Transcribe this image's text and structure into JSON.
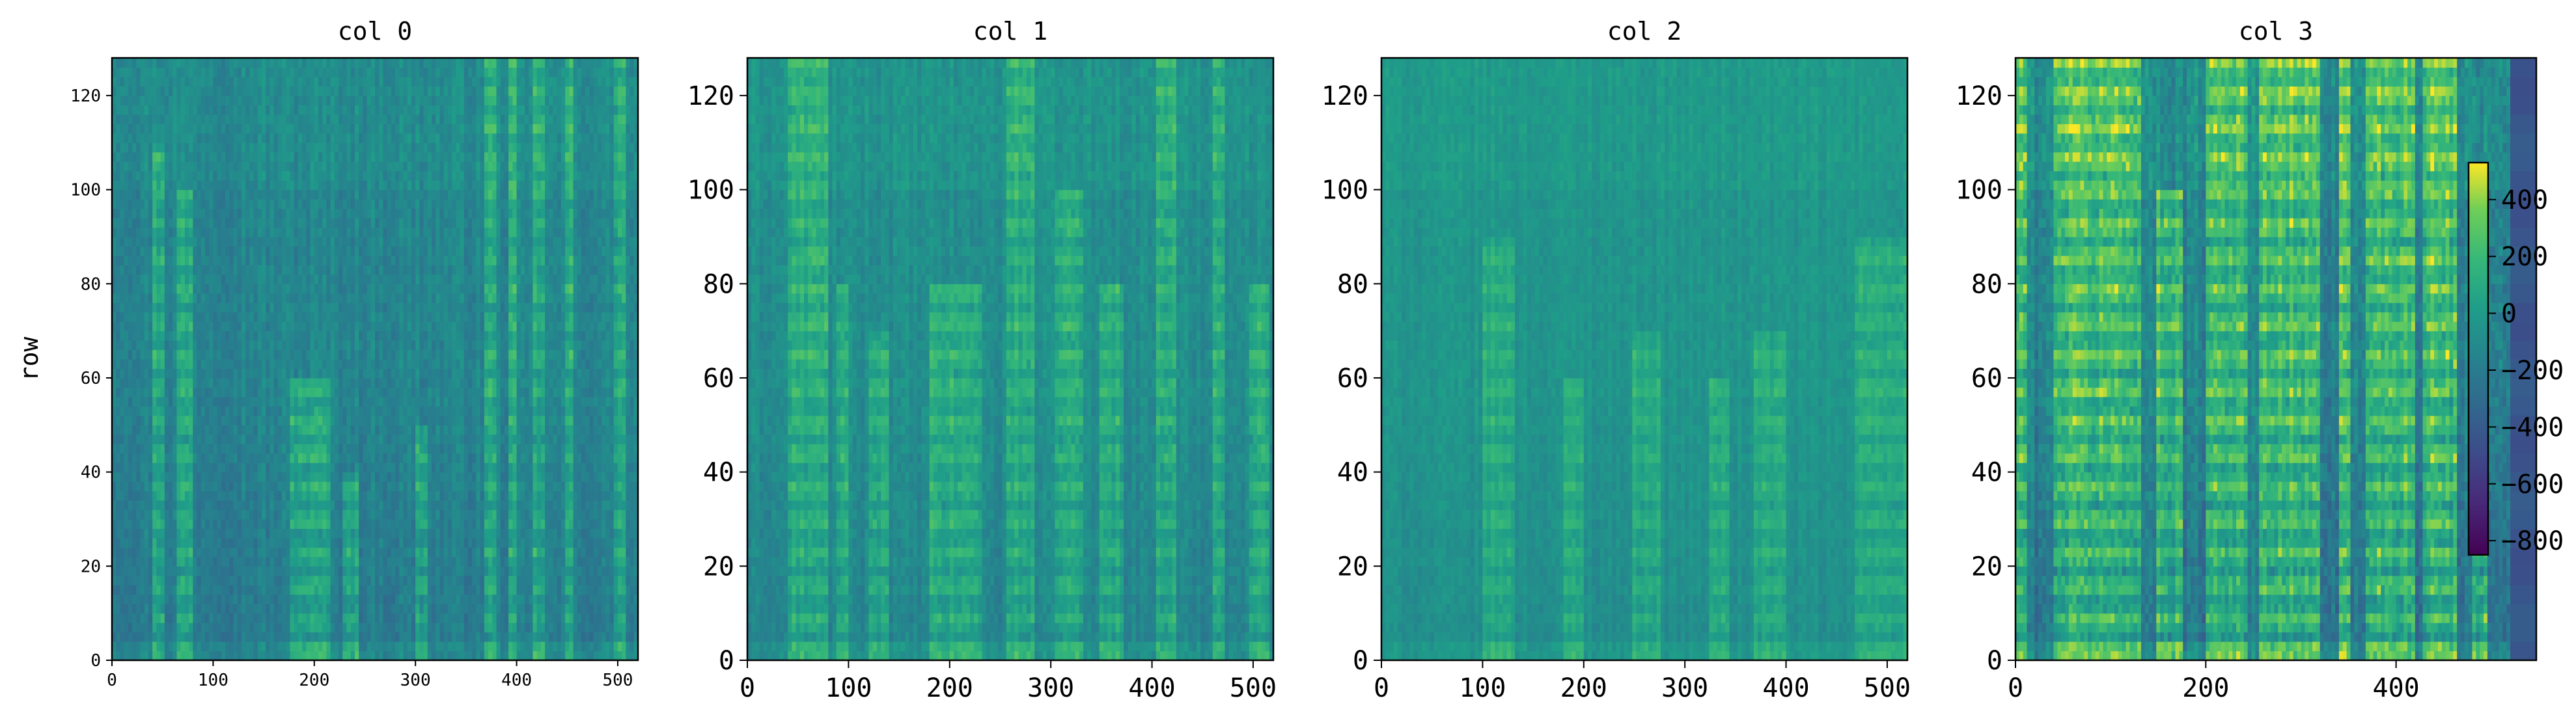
{
  "chart_data": [
    {
      "type": "heatmap",
      "title": "col 0",
      "ylabel": "row",
      "xlim": [
        0,
        520
      ],
      "ylim": [
        0,
        128
      ],
      "x_ticks": [
        0,
        100,
        200,
        300,
        400,
        500
      ],
      "y_ticks": [
        0,
        20,
        40,
        60,
        80,
        100,
        120
      ],
      "colormap": "viridis",
      "vlim": [
        -850,
        530
      ],
      "value_range_est": [
        -600,
        300
      ],
      "bright_bands_x": [
        [
          40,
          50,
          110
        ],
        [
          65,
          80,
          100
        ],
        [
          175,
          215,
          60
        ],
        [
          230,
          245,
          40
        ],
        [
          300,
          312,
          50
        ],
        [
          368,
          380,
          128
        ],
        [
          393,
          400,
          128
        ],
        [
          418,
          426,
          128
        ],
        [
          448,
          456,
          128
        ],
        [
          497,
          506,
          128
        ]
      ]
    },
    {
      "type": "heatmap",
      "title": "col 1",
      "xlim": [
        0,
        520
      ],
      "ylim": [
        0,
        128
      ],
      "x_ticks": [
        0,
        100,
        200,
        300,
        400,
        500
      ],
      "y_ticks": [
        0,
        20,
        40,
        60,
        80,
        100,
        120
      ],
      "colormap": "viridis",
      "vlim": [
        -850,
        530
      ],
      "value_range_est": [
        -500,
        300
      ],
      "bright_bands_x": [
        [
          40,
          80,
          128
        ],
        [
          90,
          100,
          80
        ],
        [
          120,
          140,
          70
        ],
        [
          180,
          230,
          80
        ],
        [
          255,
          285,
          128
        ],
        [
          305,
          330,
          100
        ],
        [
          350,
          370,
          80
        ],
        [
          405,
          425,
          128
        ],
        [
          460,
          470,
          128
        ],
        [
          495,
          515,
          80
        ]
      ]
    },
    {
      "type": "heatmap",
      "title": "col 2",
      "xlim": [
        0,
        520
      ],
      "ylim": [
        0,
        128
      ],
      "x_ticks": [
        0,
        100,
        200,
        300,
        400,
        500
      ],
      "y_ticks": [
        0,
        20,
        40,
        60,
        80,
        100,
        120
      ],
      "colormap": "viridis",
      "vlim": [
        -850,
        530
      ],
      "value_range_est": [
        -350,
        250
      ],
      "bright_bands_x": [
        [
          100,
          130,
          90
        ],
        [
          180,
          200,
          60
        ],
        [
          250,
          275,
          70
        ],
        [
          325,
          345,
          60
        ],
        [
          370,
          400,
          70
        ],
        [
          470,
          520,
          90
        ]
      ]
    },
    {
      "type": "heatmap",
      "title": "col 3",
      "xlim": [
        0,
        520
      ],
      "ylim": [
        0,
        128
      ],
      "x_ticks": [
        0,
        200,
        400
      ],
      "y_ticks": [
        0,
        20,
        40,
        60,
        80,
        100,
        120
      ],
      "colormap": "viridis",
      "vlim": [
        -850,
        530
      ],
      "value_range_est": [
        -850,
        530
      ],
      "bright_bands_x": [
        [
          0,
          10,
          128
        ],
        [
          40,
          130,
          128
        ],
        [
          150,
          175,
          100
        ],
        [
          200,
          245,
          128
        ],
        [
          255,
          320,
          128
        ],
        [
          340,
          350,
          128
        ],
        [
          370,
          420,
          128
        ],
        [
          430,
          465,
          128
        ],
        [
          480,
          495,
          100
        ]
      ]
    }
  ],
  "colorbar": {
    "colormap": "viridis",
    "range": [
      -850,
      530
    ],
    "ticks": [
      -800,
      -600,
      -400,
      -200,
      0,
      200,
      400
    ],
    "tick_labels": [
      "−800",
      "−600",
      "−400",
      "−200",
      "0",
      "200",
      "400"
    ]
  }
}
